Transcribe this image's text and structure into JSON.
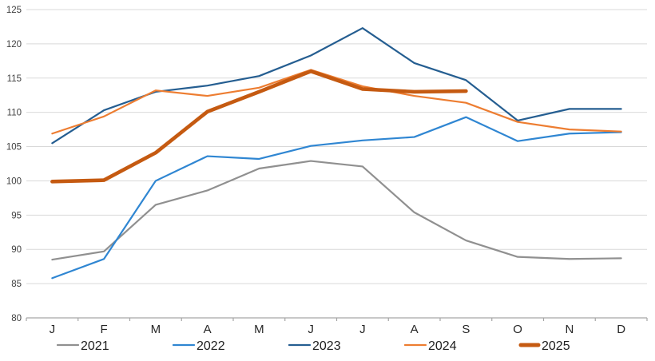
{
  "chart_data": {
    "type": "line",
    "title": "",
    "xlabel": "",
    "ylabel": "",
    "categories": [
      "J",
      "F",
      "M",
      "A",
      "M",
      "J",
      "J",
      "A",
      "S",
      "O",
      "N",
      "D"
    ],
    "y_ticks": [
      80,
      85,
      90,
      95,
      100,
      105,
      110,
      115,
      120,
      125
    ],
    "ylim": [
      80,
      125
    ],
    "grid": true,
    "legend_position": "bottom",
    "series": [
      {
        "name": "2021",
        "color": "#909090",
        "stroke_width": 2.2,
        "values": [
          88.5,
          89.7,
          96.5,
          98.6,
          101.8,
          102.9,
          102.1,
          95.4,
          91.3,
          88.9,
          88.6,
          88.7
        ]
      },
      {
        "name": "2022",
        "color": "#2F86D2",
        "stroke_width": 2.2,
        "values": [
          85.8,
          88.6,
          100.0,
          103.6,
          103.2,
          105.1,
          105.9,
          106.4,
          109.3,
          105.8,
          106.9,
          107.1
        ]
      },
      {
        "name": "2023",
        "color": "#255E91",
        "stroke_width": 2.2,
        "values": [
          105.5,
          110.3,
          113.0,
          113.9,
          115.3,
          118.3,
          122.3,
          117.2,
          114.7,
          108.8,
          110.5,
          110.5
        ]
      },
      {
        "name": "2024",
        "color": "#ED7D31",
        "stroke_width": 2.2,
        "values": [
          106.9,
          109.4,
          113.2,
          112.4,
          113.6,
          116.2,
          113.8,
          112.4,
          111.4,
          108.6,
          107.5,
          107.2
        ]
      },
      {
        "name": "2025",
        "color": "#C55A11",
        "stroke_width": 4.6,
        "values": [
          99.9,
          100.1,
          104.1,
          110.1,
          113.0,
          116.0,
          113.4,
          113.0,
          113.1,
          null,
          null,
          null
        ]
      }
    ],
    "style": {
      "gridline_color": "#D9D9D9",
      "axis_color": "#A6A6A6",
      "y_label_color": "#404040",
      "x_label_color": "#262626",
      "legend_text_color": "#1F1F1F"
    }
  }
}
